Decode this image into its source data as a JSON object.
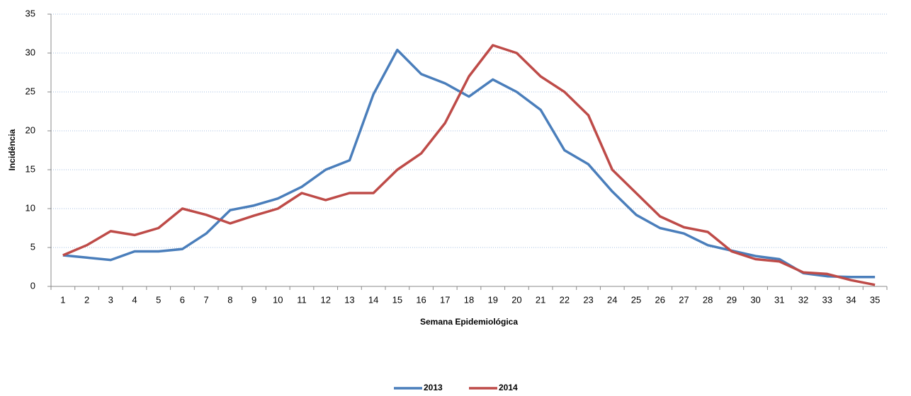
{
  "chart_data": {
    "type": "line",
    "xlabel": "Semana Epidemiológica",
    "ylabel": "Incidência",
    "categories": [
      "1",
      "2",
      "3",
      "4",
      "5",
      "6",
      "7",
      "8",
      "9",
      "10",
      "11",
      "12",
      "13",
      "14",
      "15",
      "16",
      "17",
      "18",
      "19",
      "20",
      "21",
      "22",
      "23",
      "24",
      "25",
      "26",
      "27",
      "28",
      "29",
      "30",
      "31",
      "32",
      "33",
      "34",
      "35"
    ],
    "series": [
      {
        "name": "2013",
        "color": "#4a7ebb",
        "values": [
          4.0,
          3.7,
          3.4,
          4.5,
          4.5,
          4.8,
          6.8,
          9.8,
          10.4,
          11.3,
          12.8,
          15.0,
          16.2,
          24.7,
          30.4,
          27.3,
          26.1,
          24.4,
          26.6,
          25.0,
          22.7,
          17.5,
          15.7,
          12.2,
          9.2,
          7.5,
          6.8,
          5.3,
          4.6,
          3.9,
          3.5,
          1.7,
          1.3,
          1.2,
          1.2
        ]
      },
      {
        "name": "2014",
        "color": "#be4b48",
        "values": [
          4.0,
          5.3,
          7.1,
          6.6,
          7.5,
          10.0,
          9.2,
          8.1,
          9.1,
          10.0,
          12.0,
          11.1,
          12.0,
          12.0,
          15.0,
          17.1,
          21.0,
          27.0,
          31.0,
          30.0,
          27.0,
          25.0,
          22.0,
          15.0,
          12.0,
          9.0,
          7.6,
          7.0,
          4.5,
          3.5,
          3.2,
          1.8,
          1.6,
          0.8,
          0.2
        ]
      }
    ],
    "ylim": [
      0,
      35
    ],
    "yticks": [
      0,
      5,
      10,
      15,
      20,
      25,
      30,
      35
    ],
    "grid": true,
    "legend": "bottom"
  }
}
